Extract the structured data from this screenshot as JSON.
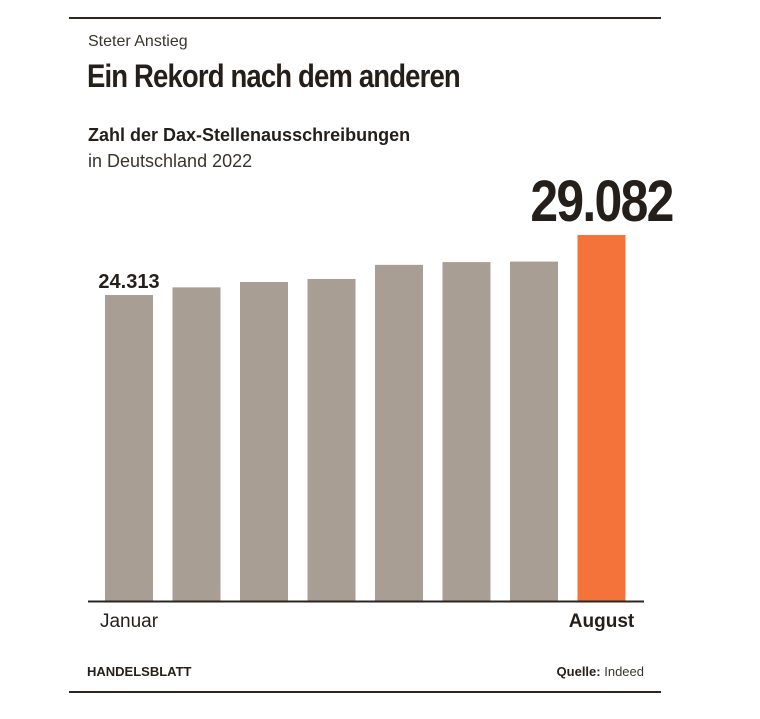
{
  "header": {
    "kicker": "Steter Anstieg",
    "headline": "Ein Rekord nach dem anderen",
    "subtitle": "Zahl der Dax-Stellenausschreibungen",
    "subtitle2": "in Deutschland 2022"
  },
  "footer": {
    "brand": "HANDELSBLATT",
    "source_label": "Quelle:",
    "source": "Indeed"
  },
  "colors": {
    "bar": "#a89e94",
    "highlight": "#f4733b",
    "text": "#241f1a"
  },
  "chart_data": {
    "type": "bar",
    "title": "Zahl der Dax-Stellenausschreibungen",
    "subtitle": "in Deutschland 2022",
    "categories": [
      "Januar",
      "",
      "",
      "",
      "",
      "",
      "",
      "August"
    ],
    "values": [
      24313,
      24920,
      25350,
      25590,
      26710,
      26930,
      26970,
      29082
    ],
    "data_labels": [
      "24.313",
      "",
      "",
      "",
      "",
      "",
      "",
      "29.082"
    ],
    "highlight_index": 7,
    "ylim": [
      0,
      30000
    ],
    "grid": false,
    "legend": "none"
  }
}
